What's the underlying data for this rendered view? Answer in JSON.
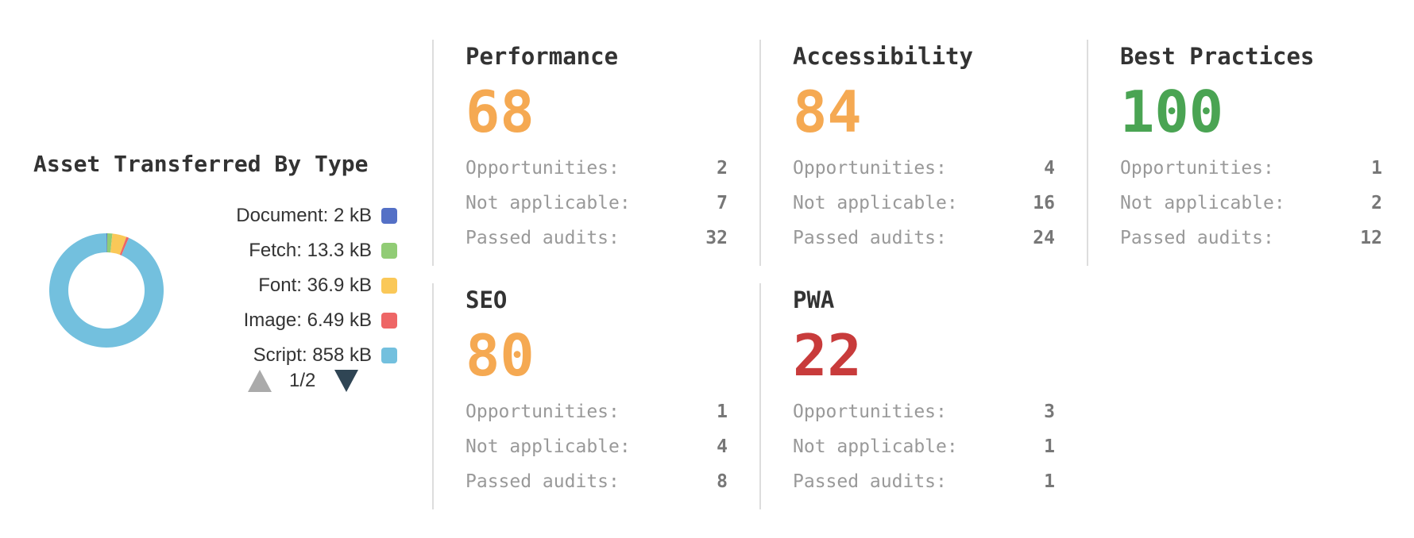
{
  "asset_panel": {
    "title": "Asset Transferred By Type",
    "legend": [
      {
        "label": "Document: 2 kB",
        "color": "#5470c6"
      },
      {
        "label": "Fetch: 13.3 kB",
        "color": "#91cc75"
      },
      {
        "label": "Font: 36.9 kB",
        "color": "#fac858"
      },
      {
        "label": "Image: 6.49 kB",
        "color": "#ee6666"
      },
      {
        "label": "Script: 858 kB",
        "color": "#73c0de"
      }
    ],
    "pager": {
      "text": "1/2"
    }
  },
  "chart_data": {
    "type": "pie",
    "categories": [
      "Document",
      "Fetch",
      "Font",
      "Image",
      "Script"
    ],
    "values": [
      2,
      13.3,
      36.9,
      6.49,
      858
    ],
    "units": "kB",
    "colors": [
      "#5470c6",
      "#91cc75",
      "#fac858",
      "#ee6666",
      "#73c0de"
    ]
  },
  "cards": [
    {
      "name": "Performance",
      "score": "68",
      "color": "#f5a952",
      "stats": [
        {
          "label": "Opportunities:",
          "value": "2"
        },
        {
          "label": "Not applicable:",
          "value": "7"
        },
        {
          "label": "Passed audits:",
          "value": "32"
        }
      ]
    },
    {
      "name": "Accessibility",
      "score": "84",
      "color": "#f5a952",
      "stats": [
        {
          "label": "Opportunities:",
          "value": "4"
        },
        {
          "label": "Not applicable:",
          "value": "16"
        },
        {
          "label": "Passed audits:",
          "value": "24"
        }
      ]
    },
    {
      "name": "Best Practices",
      "score": "100",
      "color": "#4aa453",
      "stats": [
        {
          "label": "Opportunities:",
          "value": "1"
        },
        {
          "label": "Not applicable:",
          "value": "2"
        },
        {
          "label": "Passed audits:",
          "value": "12"
        }
      ]
    },
    {
      "name": "SEO",
      "score": "80",
      "color": "#f5a952",
      "stats": [
        {
          "label": "Opportunities:",
          "value": "1"
        },
        {
          "label": "Not applicable:",
          "value": "4"
        },
        {
          "label": "Passed audits:",
          "value": "8"
        }
      ]
    },
    {
      "name": "PWA",
      "score": "22",
      "color": "#c83b3b",
      "stats": [
        {
          "label": "Opportunities:",
          "value": "3"
        },
        {
          "label": "Not applicable:",
          "value": "1"
        },
        {
          "label": "Passed audits:",
          "value": "1"
        }
      ]
    }
  ]
}
